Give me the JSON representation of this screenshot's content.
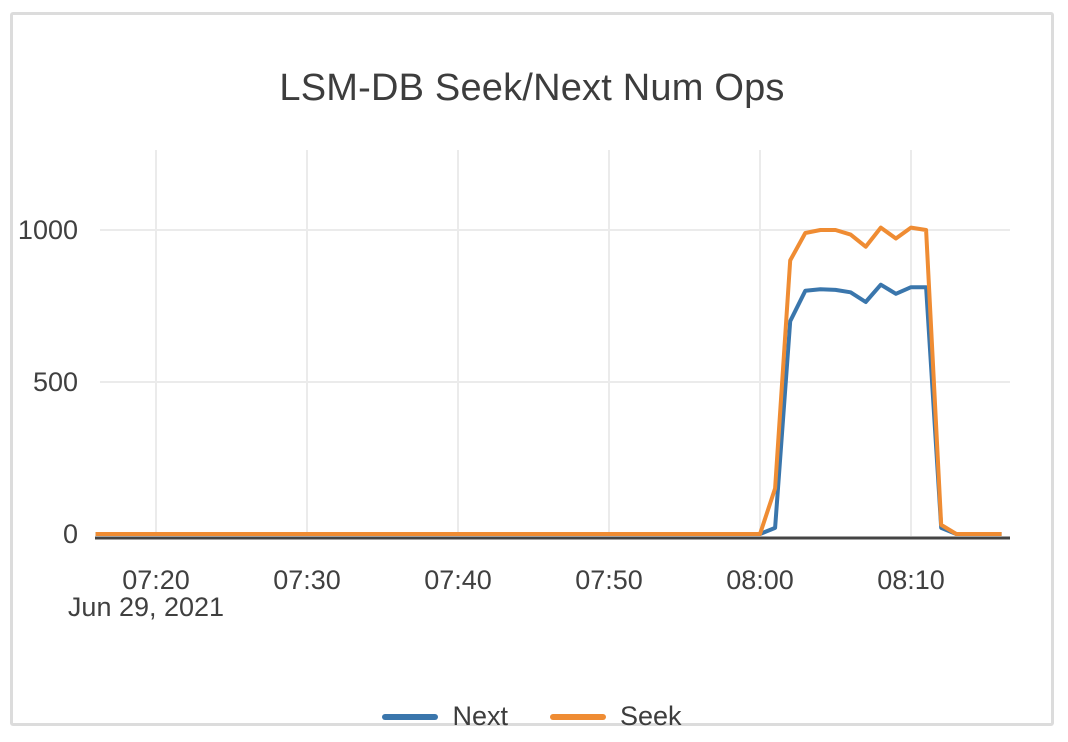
{
  "chart_data": {
    "type": "line",
    "title": "LSM-DB Seek/Next Num Ops",
    "xlabel": "",
    "ylabel": "",
    "x_date_label": "Jun 29, 2021",
    "xticks": [
      "07:20",
      "07:30",
      "07:40",
      "07:50",
      "08:00",
      "08:10"
    ],
    "yticks": [
      0,
      500,
      1000
    ],
    "ylim": [
      0,
      1260
    ],
    "grid": true,
    "legend_position": "bottom",
    "axis_color": "#444444",
    "gridline_color": "#ebebeb",
    "text_color": "#3d3d3d",
    "x": [
      "07:16",
      "07:17",
      "07:18",
      "07:19",
      "07:20",
      "07:21",
      "07:22",
      "07:23",
      "07:24",
      "07:25",
      "07:26",
      "07:27",
      "07:28",
      "07:29",
      "07:30",
      "07:31",
      "07:32",
      "07:33",
      "07:34",
      "07:35",
      "07:36",
      "07:37",
      "07:38",
      "07:39",
      "07:40",
      "07:41",
      "07:42",
      "07:43",
      "07:44",
      "07:45",
      "07:46",
      "07:47",
      "07:48",
      "07:49",
      "07:50",
      "07:51",
      "07:52",
      "07:53",
      "07:54",
      "07:55",
      "07:56",
      "07:57",
      "07:58",
      "07:59",
      "08:00",
      "08:01",
      "08:02",
      "08:03",
      "08:04",
      "08:05",
      "08:06",
      "08:07",
      "08:08",
      "08:09",
      "08:10",
      "08:11",
      "08:12",
      "08:13",
      "08:14",
      "08:15",
      "08:16"
    ],
    "series": [
      {
        "name": "Next",
        "color": "#3a76ac",
        "values": [
          0,
          0,
          0,
          0,
          0,
          0,
          0,
          0,
          0,
          0,
          0,
          0,
          0,
          0,
          0,
          0,
          0,
          0,
          0,
          0,
          0,
          0,
          0,
          0,
          0,
          0,
          0,
          0,
          0,
          0,
          0,
          0,
          0,
          0,
          0,
          0,
          0,
          0,
          0,
          0,
          0,
          0,
          0,
          0,
          0,
          20,
          700,
          800,
          805,
          803,
          795,
          763,
          820,
          790,
          812,
          812,
          20,
          0,
          0,
          0,
          0
        ]
      },
      {
        "name": "Seek",
        "color": "#ef8c33",
        "values": [
          0,
          0,
          0,
          0,
          0,
          0,
          0,
          0,
          0,
          0,
          0,
          0,
          0,
          0,
          0,
          0,
          0,
          0,
          0,
          0,
          0,
          0,
          0,
          0,
          0,
          0,
          0,
          0,
          0,
          0,
          0,
          0,
          0,
          0,
          0,
          0,
          0,
          0,
          0,
          0,
          0,
          0,
          0,
          0,
          0,
          150,
          900,
          990,
          1000,
          1000,
          985,
          945,
          1008,
          972,
          1008,
          1000,
          30,
          0,
          0,
          0,
          0
        ]
      }
    ]
  }
}
